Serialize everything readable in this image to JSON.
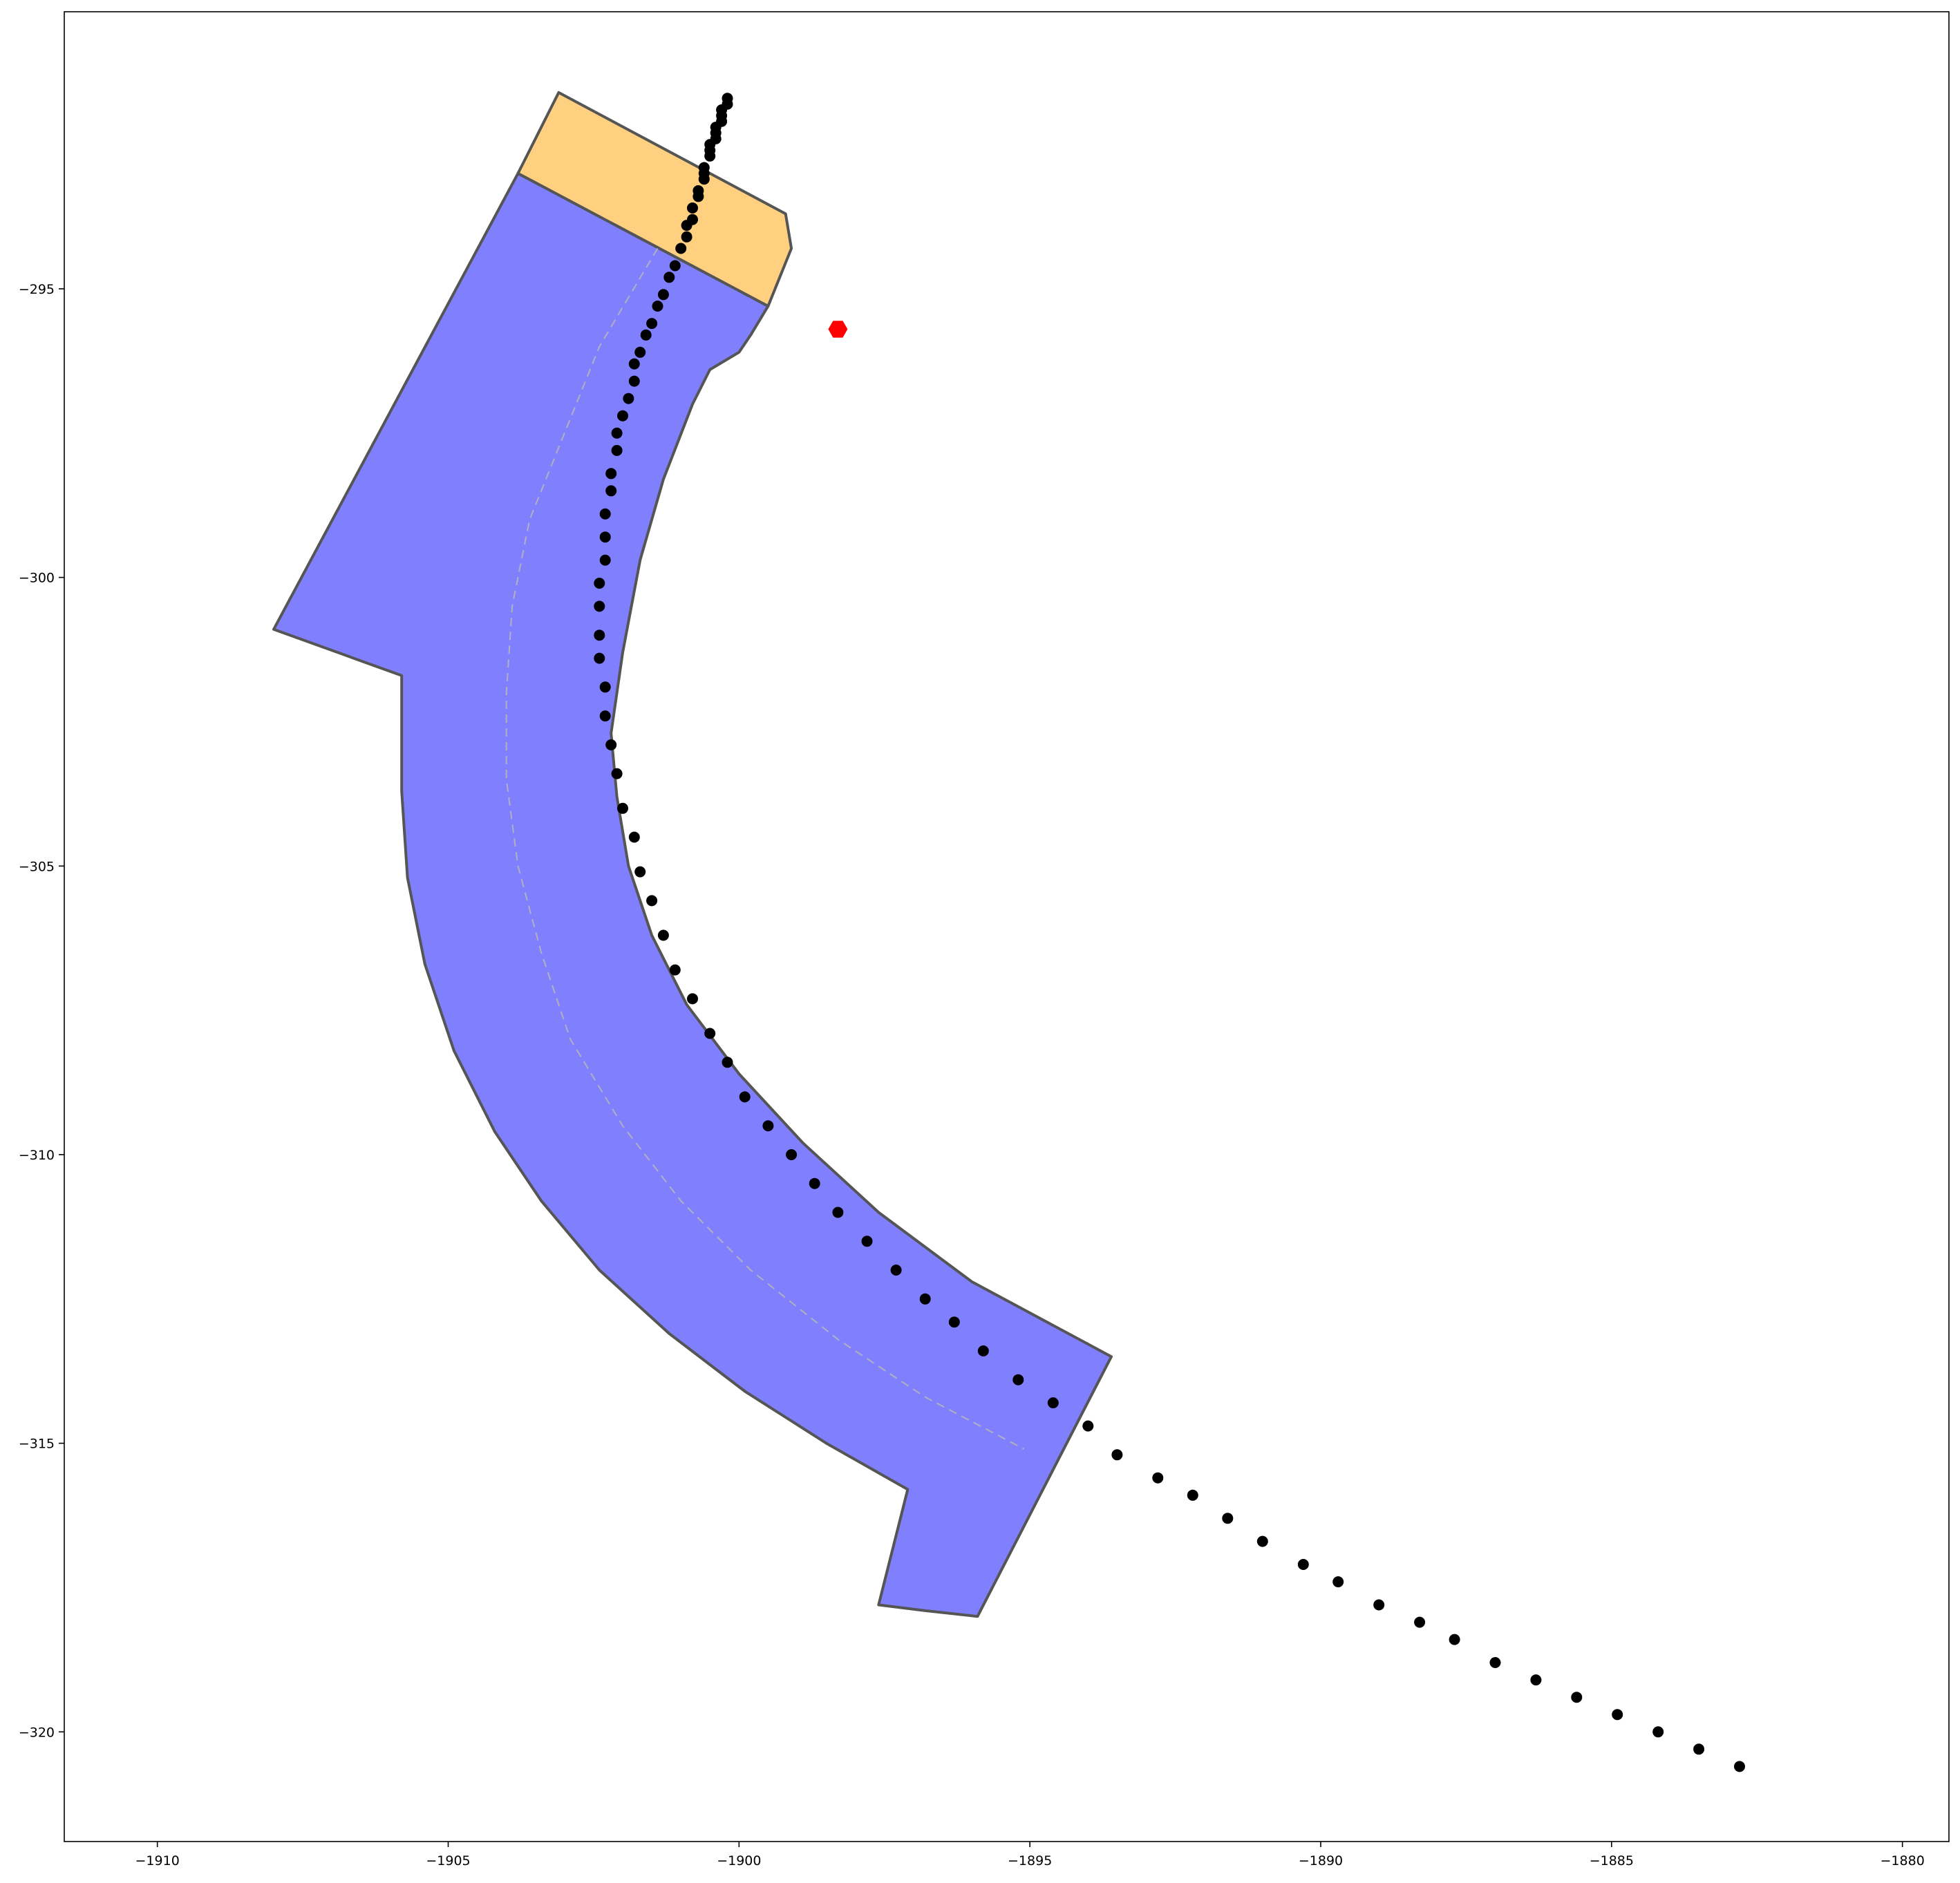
{
  "chart_data": {
    "type": "scatter",
    "title": "",
    "xlabel": "",
    "ylabel": "",
    "xlim": [
      -1911.6,
      -1879.2
    ],
    "ylim": [
      -321.9,
      -290.2
    ],
    "grid": false,
    "x_ticks": [
      -1910,
      -1905,
      -1900,
      -1895,
      -1890,
      -1885,
      -1880
    ],
    "y_ticks": [
      -295,
      -300,
      -305,
      -310,
      -315,
      -320
    ],
    "x_tick_labels": [
      "−1910",
      "−1905",
      "−1900",
      "−1895",
      "−1890",
      "−1885",
      "−1880"
    ],
    "y_tick_labels": [
      "−295",
      "−300",
      "−305",
      "−310",
      "−315",
      "−320"
    ],
    "colors": {
      "lane_fill": "#8080ff",
      "connector_fill": "#ffd080",
      "outline": "#555555",
      "path_points": "#000000",
      "marker": "#ff0000"
    },
    "polygons": [
      {
        "name": "lane",
        "fill": "#8080ff",
        "points": [
          [
            -1903.8,
            -293.0
          ],
          [
            -1899.5,
            -295.3
          ],
          [
            -1899.8,
            -295.8
          ],
          [
            -1900.0,
            -296.1
          ],
          [
            -1900.5,
            -296.4
          ],
          [
            -1900.8,
            -297.0
          ],
          [
            -1901.3,
            -298.3
          ],
          [
            -1901.7,
            -299.7
          ],
          [
            -1902.0,
            -301.3
          ],
          [
            -1902.2,
            -302.7
          ],
          [
            -1902.1,
            -303.8
          ],
          [
            -1901.9,
            -305.0
          ],
          [
            -1901.5,
            -306.2
          ],
          [
            -1900.9,
            -307.4
          ],
          [
            -1900.0,
            -308.6
          ],
          [
            -1898.9,
            -309.8
          ],
          [
            -1897.6,
            -311.0
          ],
          [
            -1896.0,
            -312.2
          ],
          [
            -1893.6,
            -313.5
          ],
          [
            -1895.9,
            -318.0
          ],
          [
            -1896.8,
            -317.9
          ],
          [
            -1897.6,
            -317.8
          ],
          [
            -1897.1,
            -315.8
          ],
          [
            -1898.5,
            -315.0
          ],
          [
            -1899.9,
            -314.1
          ],
          [
            -1901.2,
            -313.1
          ],
          [
            -1902.4,
            -312.0
          ],
          [
            -1903.4,
            -310.8
          ],
          [
            -1904.2,
            -309.6
          ],
          [
            -1904.9,
            -308.2
          ],
          [
            -1905.4,
            -306.7
          ],
          [
            -1905.7,
            -305.2
          ],
          [
            -1905.8,
            -303.7
          ],
          [
            -1905.8,
            -301.7
          ],
          [
            -1908.0,
            -300.9
          ]
        ]
      },
      {
        "name": "connector",
        "fill": "#ffd080",
        "points": [
          [
            -1903.1,
            -291.6
          ],
          [
            -1899.2,
            -293.7
          ],
          [
            -1899.1,
            -294.3
          ],
          [
            -1899.5,
            -295.3
          ],
          [
            -1903.8,
            -293.0
          ]
        ]
      }
    ],
    "centerline": {
      "name": "lane-centerline",
      "points": [
        [
          -1901.4,
          -294.3
        ],
        [
          -1902.4,
          -296.0
        ],
        [
          -1903.0,
          -297.5
        ],
        [
          -1903.6,
          -299.0
        ],
        [
          -1903.9,
          -300.5
        ],
        [
          -1904.0,
          -302.0
        ],
        [
          -1904.0,
          -303.5
        ],
        [
          -1903.8,
          -305.0
        ],
        [
          -1903.4,
          -306.5
        ],
        [
          -1902.9,
          -308.0
        ],
        [
          -1902.0,
          -309.5
        ],
        [
          -1901.0,
          -310.8
        ],
        [
          -1899.8,
          -312.0
        ],
        [
          -1898.3,
          -313.2
        ],
        [
          -1896.8,
          -314.2
        ],
        [
          -1895.1,
          -315.1
        ]
      ]
    },
    "series": [
      {
        "points": [
          [
            -1900.2,
            -291.7
          ],
          [
            -1900.2,
            -291.8
          ],
          [
            -1900.3,
            -291.9
          ],
          [
            -1900.3,
            -292.0
          ],
          [
            -1900.3,
            -292.1
          ],
          [
            -1900.4,
            -292.2
          ],
          [
            -1900.4,
            -292.3
          ],
          [
            -1900.4,
            -292.4
          ],
          [
            -1900.5,
            -292.5
          ],
          [
            -1900.5,
            -292.6
          ],
          [
            -1900.5,
            -292.7
          ],
          [
            -1900.6,
            -292.9
          ],
          [
            -1900.6,
            -293.0
          ],
          [
            -1900.6,
            -293.1
          ],
          [
            -1900.7,
            -293.3
          ],
          [
            -1900.7,
            -293.4
          ],
          [
            -1900.8,
            -293.6
          ],
          [
            -1900.8,
            -293.8
          ],
          [
            -1900.9,
            -293.9
          ],
          [
            -1900.9,
            -294.1
          ],
          [
            -1901.0,
            -294.3
          ],
          [
            -1901.1,
            -294.6
          ],
          [
            -1901.2,
            -294.8
          ],
          [
            -1901.3,
            -295.1
          ],
          [
            -1901.4,
            -295.3
          ],
          [
            -1901.5,
            -295.6
          ],
          [
            -1901.6,
            -295.8
          ],
          [
            -1901.7,
            -296.1
          ],
          [
            -1901.8,
            -296.3
          ],
          [
            -1901.8,
            -296.6
          ],
          [
            -1901.9,
            -296.9
          ],
          [
            -1902.0,
            -297.2
          ],
          [
            -1902.1,
            -297.5
          ],
          [
            -1902.1,
            -297.8
          ],
          [
            -1902.2,
            -298.2
          ],
          [
            -1902.2,
            -298.5
          ],
          [
            -1902.3,
            -298.9
          ],
          [
            -1902.3,
            -299.3
          ],
          [
            -1902.3,
            -299.7
          ],
          [
            -1902.4,
            -300.1
          ],
          [
            -1902.4,
            -300.5
          ],
          [
            -1902.4,
            -301.0
          ],
          [
            -1902.4,
            -301.4
          ],
          [
            -1902.3,
            -301.9
          ],
          [
            -1902.3,
            -302.4
          ],
          [
            -1902.2,
            -302.9
          ],
          [
            -1902.1,
            -303.4
          ],
          [
            -1902.0,
            -304.0
          ],
          [
            -1901.8,
            -304.5
          ],
          [
            -1901.7,
            -305.1
          ],
          [
            -1901.5,
            -305.6
          ],
          [
            -1901.3,
            -306.2
          ],
          [
            -1901.1,
            -306.8
          ],
          [
            -1900.8,
            -307.3
          ],
          [
            -1900.5,
            -307.9
          ],
          [
            -1900.2,
            -308.4
          ],
          [
            -1899.9,
            -309.0
          ],
          [
            -1899.5,
            -309.5
          ],
          [
            -1899.1,
            -310.0
          ],
          [
            -1898.7,
            -310.5
          ],
          [
            -1898.3,
            -311.0
          ],
          [
            -1897.8,
            -311.5
          ],
          [
            -1897.3,
            -312.0
          ],
          [
            -1896.8,
            -312.5
          ],
          [
            -1896.3,
            -312.9
          ],
          [
            -1895.8,
            -313.4
          ],
          [
            -1895.2,
            -313.9
          ],
          [
            -1894.6,
            -314.3
          ],
          [
            -1894.0,
            -314.7
          ],
          [
            -1893.5,
            -315.2
          ],
          [
            -1892.8,
            -315.6
          ],
          [
            -1892.2,
            -315.9
          ],
          [
            -1891.6,
            -316.3
          ],
          [
            -1891.0,
            -316.7
          ],
          [
            -1890.3,
            -317.1
          ],
          [
            -1889.7,
            -317.4
          ],
          [
            -1889.0,
            -317.8
          ],
          [
            -1888.3,
            -318.1
          ],
          [
            -1887.7,
            -318.4
          ],
          [
            -1887.0,
            -318.8
          ],
          [
            -1886.3,
            -319.1
          ],
          [
            -1885.6,
            -319.4
          ],
          [
            -1884.9,
            -319.7
          ],
          [
            -1884.2,
            -320.0
          ],
          [
            -1883.5,
            -320.3
          ],
          [
            -1882.8,
            -320.6
          ]
        ]
      }
    ],
    "marker": {
      "name": "red-hexagon",
      "x": -1898.3,
      "y": -295.7,
      "color": "#ff0000"
    }
  }
}
